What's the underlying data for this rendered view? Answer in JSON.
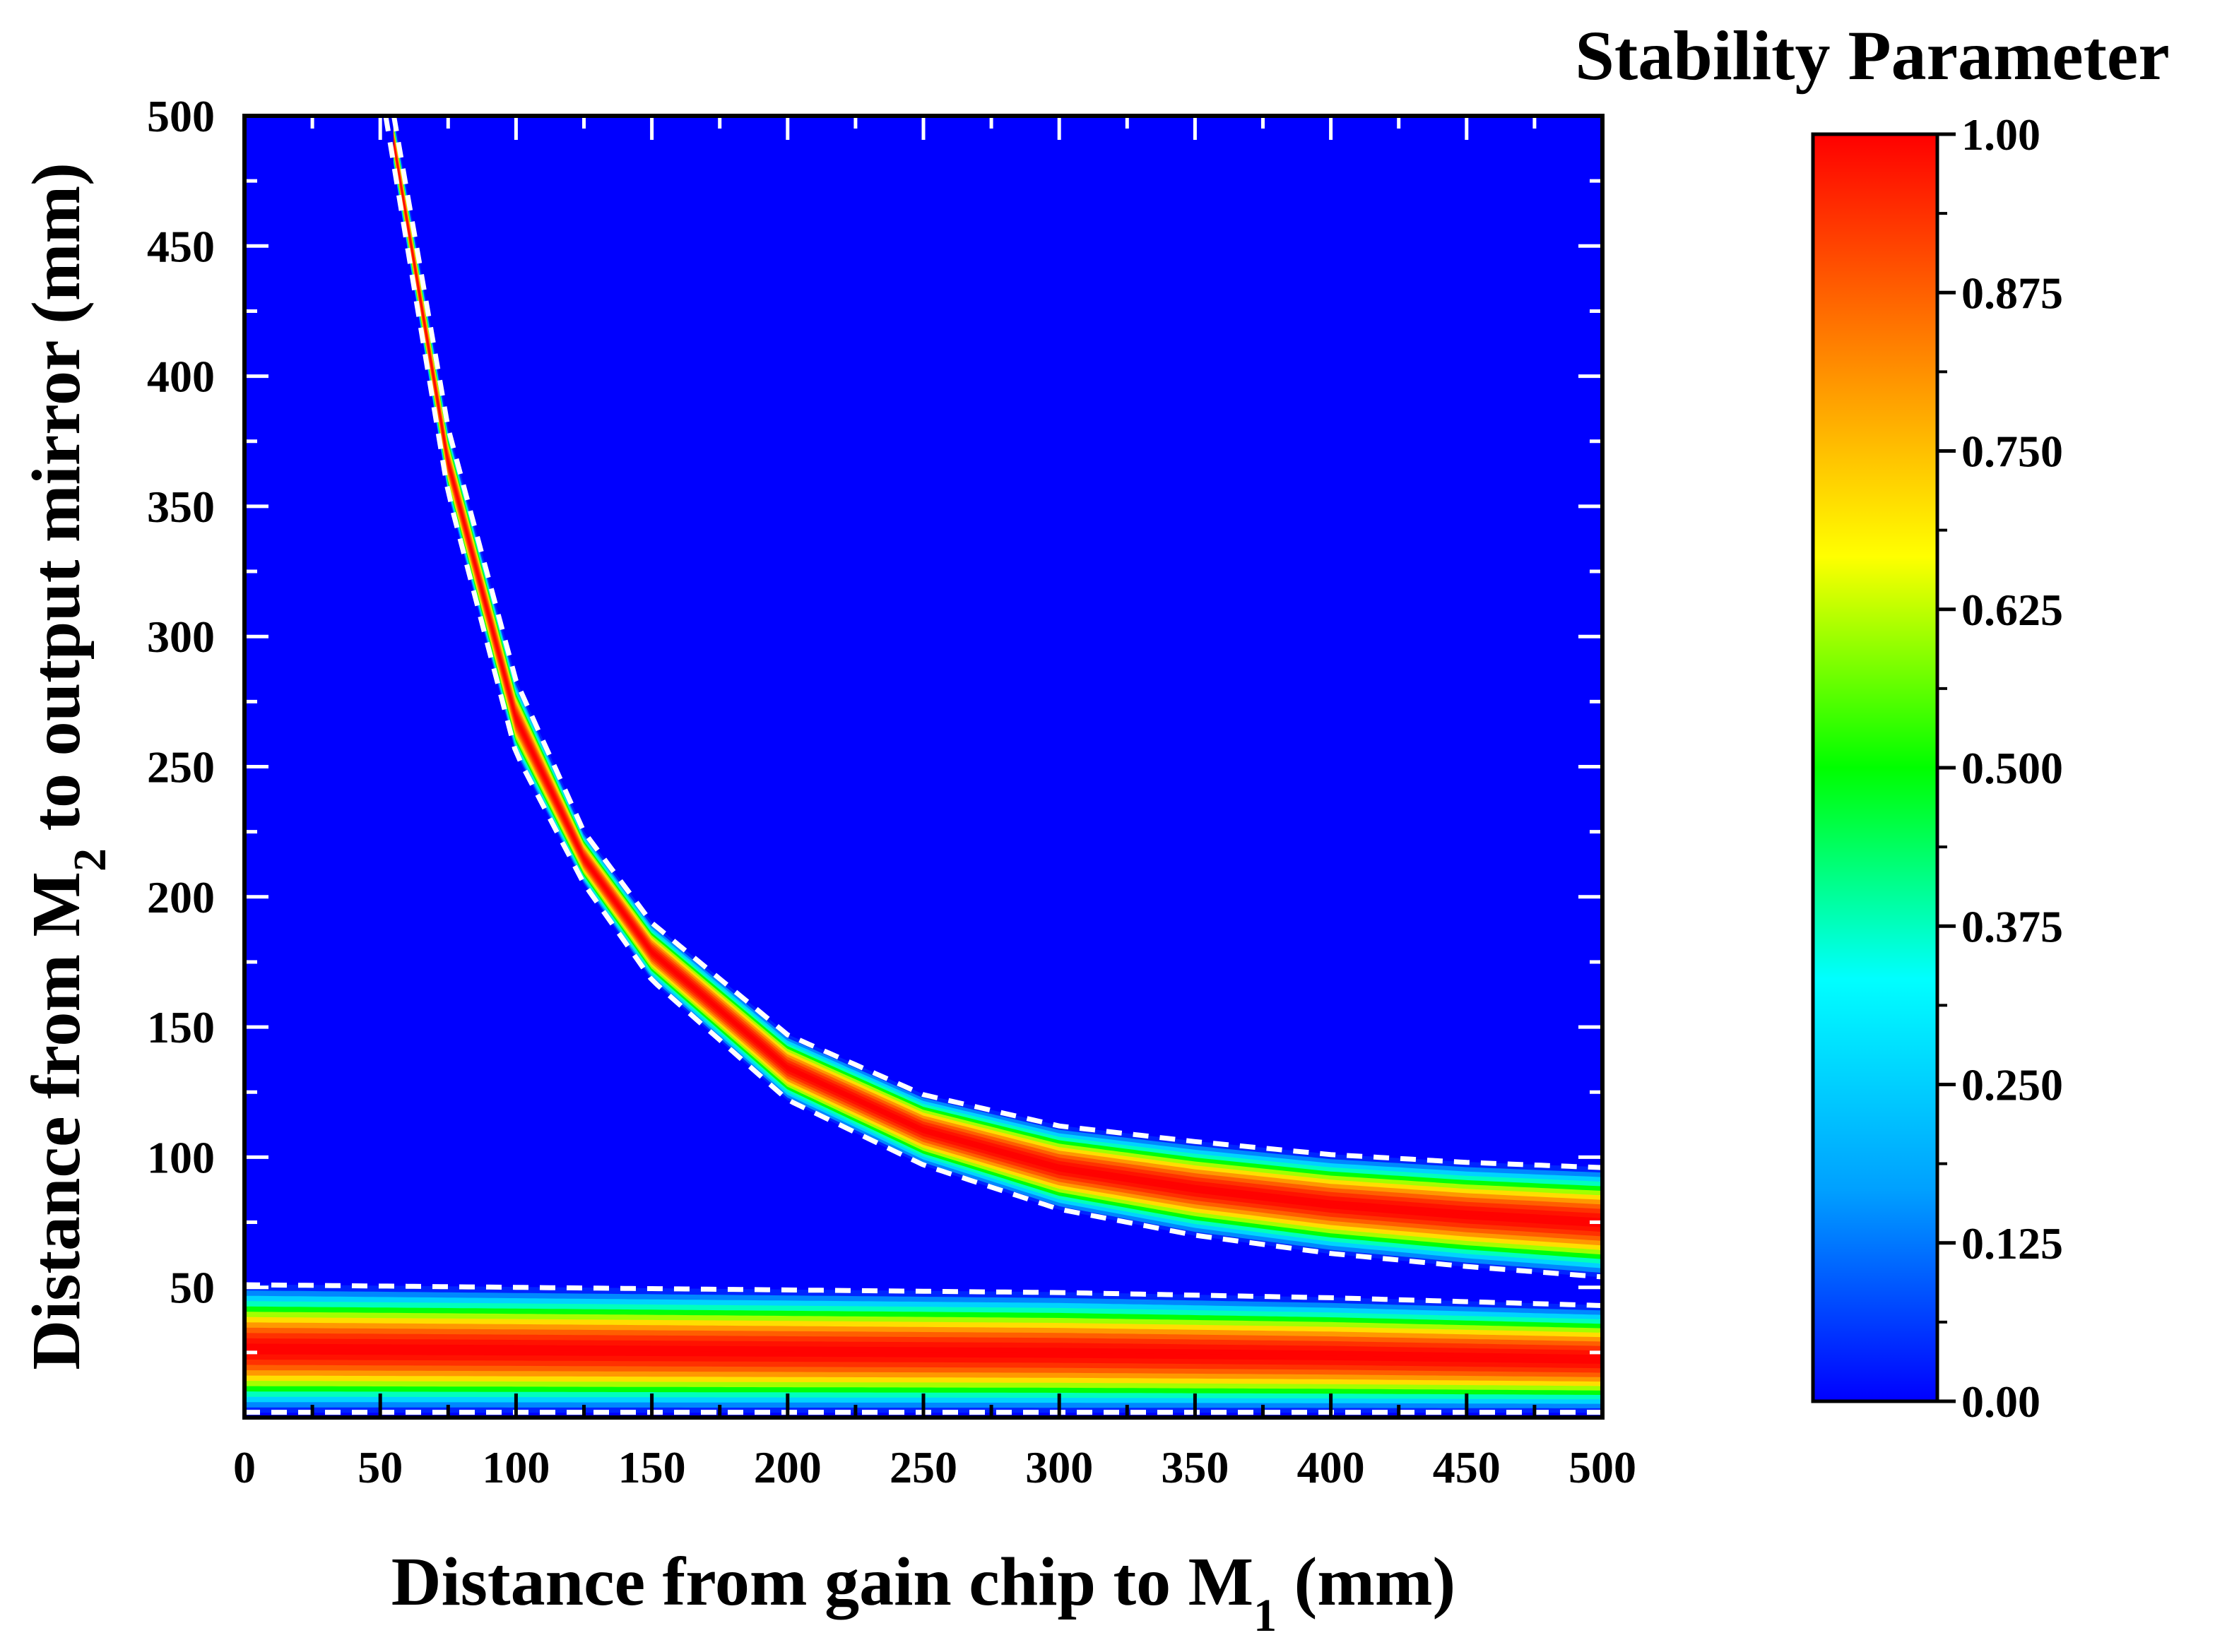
{
  "chart_data": {
    "type": "heatmap",
    "title": "Stability Parameter",
    "xlabel": {
      "main": "Distance from gain chip to M",
      "sub": "1",
      "tail": " (mm)"
    },
    "ylabel": {
      "main": "Distance from M",
      "sub": "2",
      "tail": " to output mirror (mm)"
    },
    "xlim": [
      0,
      500
    ],
    "ylim": [
      0,
      500
    ],
    "x_ticks": [
      "0",
      "50",
      "100",
      "150",
      "200",
      "250",
      "300",
      "350",
      "400",
      "450",
      "500"
    ],
    "y_ticks": [
      "500",
      "450",
      "400",
      "350",
      "300",
      "250",
      "200",
      "150",
      "100",
      "50"
    ],
    "x_tick_values": [
      0,
      50,
      100,
      150,
      200,
      250,
      300,
      350,
      400,
      450,
      500
    ],
    "y_tick_values": [
      500,
      450,
      400,
      350,
      300,
      250,
      200,
      150,
      100,
      50
    ],
    "colorbar": {
      "range": [
        0,
        1
      ],
      "ticks": [
        "1.00",
        "0.875",
        "0.750",
        "0.625",
        "0.500",
        "0.375",
        "0.250",
        "0.125",
        "0.00"
      ],
      "tick_values": [
        1.0,
        0.875,
        0.75,
        0.625,
        0.5,
        0.375,
        0.25,
        0.125,
        0.0
      ],
      "colormap": [
        "#0000ff",
        "#00a0ff",
        "#00ffff",
        "#00ff00",
        "#ffff00",
        "#ff8000",
        "#ff0000"
      ]
    },
    "stable_regions": [
      {
        "name": "upper-hyperbolic-band",
        "description": "stability parameter from 0 to 1 to 0 across the band",
        "lower_boundary": {
          "x": [
            52,
            75,
            100,
            125,
            150,
            200,
            250,
            300,
            350,
            400,
            450,
            500
          ],
          "y": [
            500,
            355,
            255,
            205,
            168,
            122,
            97,
            80,
            70,
            63,
            58,
            54
          ]
        },
        "upper_boundary": {
          "x": [
            55,
            75,
            100,
            125,
            150,
            200,
            250,
            300,
            350,
            400,
            450,
            500
          ],
          "y": [
            500,
            380,
            283,
            225,
            190,
            147,
            124,
            112,
            106,
            101,
            98,
            96
          ]
        }
      },
      {
        "name": "lower-horizontal-band",
        "lower_boundary": {
          "x": [
            0,
            500
          ],
          "y": [
            2,
            2
          ]
        },
        "upper_boundary": {
          "x": [
            0,
            100,
            200,
            300,
            400,
            500
          ],
          "y": [
            51,
            50,
            49,
            48,
            46,
            43
          ]
        }
      }
    ],
    "boundary_style": "white dashed line"
  }
}
